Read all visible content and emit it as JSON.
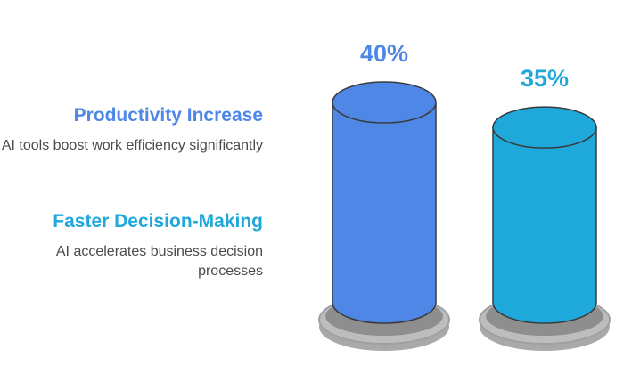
{
  "chart_data": {
    "type": "bar",
    "categories": [
      "Productivity Increase",
      "Faster Decision-Making"
    ],
    "values": [
      40,
      35
    ],
    "value_labels": [
      "40%",
      "35%"
    ],
    "descriptions": [
      "AI tools boost work efficiency significantly",
      "AI accelerates business decision processes"
    ],
    "colors": [
      "#4F87E6",
      "#1FA8DA"
    ],
    "title": "",
    "xlabel": "",
    "ylabel": "",
    "ylim": [
      0,
      40
    ],
    "grid": false,
    "legend_placement": "left"
  },
  "legend": {
    "items": [
      {
        "title": "Productivity Increase",
        "description": "AI tools boost work efficiency significantly"
      },
      {
        "title": "Faster Decision-Making",
        "description": "AI accelerates business decision processes"
      }
    ]
  },
  "colors": {
    "series_0": "#4F87E6",
    "series_1": "#1FA8DA",
    "base": "#BDBDBD"
  }
}
